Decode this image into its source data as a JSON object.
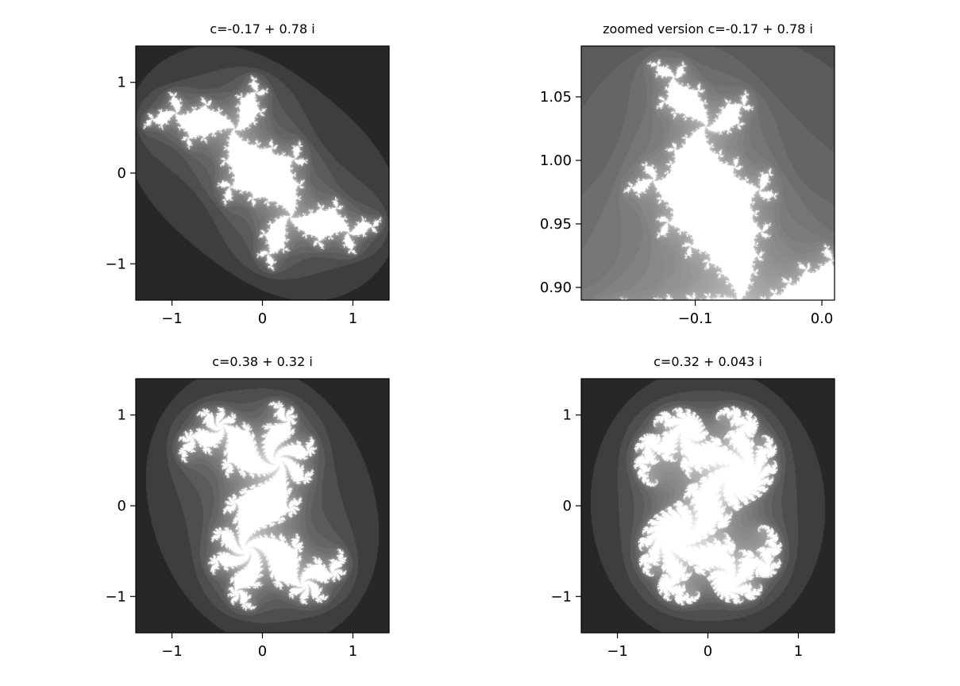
{
  "chart_data": [
    {
      "type": "heatmap",
      "title": "c=-0.17 + 0.78 i",
      "c": {
        "re": -0.17,
        "im": 0.78
      },
      "xlim": [
        -1.4,
        1.4
      ],
      "ylim": [
        -1.4,
        1.4
      ],
      "xticks": [
        -1,
        0,
        1
      ],
      "xtick_labels": [
        "−1",
        "0",
        "1"
      ],
      "yticks": [
        1,
        0,
        -1
      ],
      "ytick_labels": [
        "1",
        "0",
        "−1"
      ],
      "colormap": "gray",
      "grid": false
    },
    {
      "type": "heatmap",
      "title": "zoomed version c=-0.17 + 0.78 i",
      "c": {
        "re": -0.17,
        "im": 0.78
      },
      "xlim": [
        -0.19,
        0.01
      ],
      "ylim": [
        0.89,
        1.09
      ],
      "xticks": [
        -0.1,
        0.0
      ],
      "xtick_labels": [
        "−0.1",
        "0.0"
      ],
      "yticks": [
        1.05,
        1.0,
        0.95,
        0.9
      ],
      "ytick_labels": [
        "1.05",
        "1.00",
        "0.95",
        "0.90"
      ],
      "colormap": "gray",
      "grid": false
    },
    {
      "type": "heatmap",
      "title": "c=0.38 + 0.32 i",
      "c": {
        "re": 0.38,
        "im": 0.32
      },
      "xlim": [
        -1.4,
        1.4
      ],
      "ylim": [
        -1.4,
        1.4
      ],
      "xticks": [
        -1,
        0,
        1
      ],
      "xtick_labels": [
        "−1",
        "0",
        "1"
      ],
      "yticks": [
        1,
        0,
        -1
      ],
      "ytick_labels": [
        "1",
        "0",
        "−1"
      ],
      "colormap": "gray",
      "grid": false
    },
    {
      "type": "heatmap",
      "title": "c=0.32 + 0.043 i",
      "c": {
        "re": 0.32,
        "im": 0.043
      },
      "xlim": [
        -1.4,
        1.4
      ],
      "ylim": [
        -1.4,
        1.4
      ],
      "xticks": [
        -1,
        0,
        1
      ],
      "xtick_labels": [
        "−1",
        "0",
        "1"
      ],
      "yticks": [
        1,
        0,
        -1
      ],
      "ytick_labels": [
        "1",
        "0",
        "−1"
      ],
      "colormap": "gray",
      "grid": false
    }
  ]
}
